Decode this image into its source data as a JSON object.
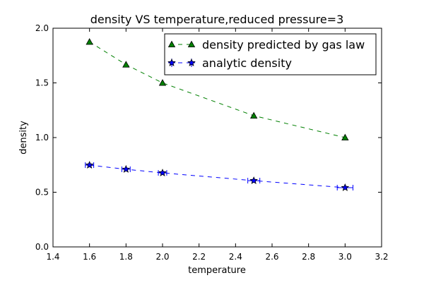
{
  "chart_data": {
    "type": "line",
    "title": "density VS temperature,reduced pressure=3",
    "xlabel": "temperature",
    "ylabel": "density",
    "xlim": [
      1.4,
      3.2
    ],
    "ylim": [
      0.0,
      2.0
    ],
    "xticks": [
      "1.4",
      "1.6",
      "1.8",
      "2.0",
      "2.2",
      "2.4",
      "2.6",
      "2.8",
      "3.0",
      "3.2"
    ],
    "yticks": [
      "0.0",
      "0.5",
      "1.0",
      "1.5",
      "2.0"
    ],
    "grid": false,
    "legend_position": "top-right",
    "series": [
      {
        "name": "density predicted by gas law",
        "color": "#008000",
        "marker": "triangle",
        "linestyle": "dashed",
        "x": [
          1.6,
          1.8,
          2.0,
          2.5,
          3.0
        ],
        "y": [
          1.875,
          1.667,
          1.5,
          1.2,
          1.0
        ]
      },
      {
        "name": "analytic density",
        "color": "#0000ff",
        "marker": "star",
        "linestyle": "dashed",
        "x": [
          1.6,
          1.8,
          2.0,
          2.5,
          3.0
        ],
        "y": [
          0.748,
          0.71,
          0.677,
          0.606,
          0.542
        ],
        "xerr": [
          0.023,
          0.023,
          0.023,
          0.033,
          0.043
        ],
        "yerr": [
          0.005,
          0.005,
          0.005,
          0.005,
          0.005
        ]
      }
    ]
  }
}
